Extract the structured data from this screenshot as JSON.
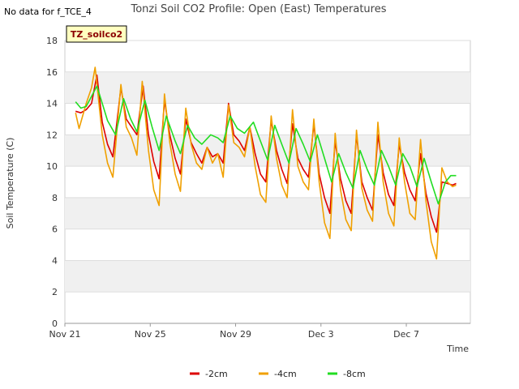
{
  "header": {
    "title": "Tonzi Soil CO2 Profile: Open (East) Temperatures",
    "no_data_note": "No data for f_TCE_4"
  },
  "badge": {
    "label": "TZ_soilco2"
  },
  "chart_data": {
    "type": "line",
    "title": "Tonzi Soil CO2 Profile: Open (East) Temperatures",
    "xlabel": "Time",
    "ylabel": "Soil Temperature (C)",
    "xlim": [
      "2019-11-21",
      "2019-12-10"
    ],
    "ylim": [
      0,
      18
    ],
    "x_ticks": [
      {
        "label": "Nov 21",
        "date": "2019-11-21"
      },
      {
        "label": "Nov 25",
        "date": "2019-11-25"
      },
      {
        "label": "Nov 29",
        "date": "2019-11-29"
      },
      {
        "label": "Dec 3",
        "date": "2019-12-03"
      },
      {
        "label": "Dec 7",
        "date": "2019-12-07"
      }
    ],
    "y_ticks": [
      0,
      2,
      4,
      6,
      8,
      10,
      12,
      14,
      16,
      18
    ],
    "grid": true,
    "legend_position": "bottom",
    "series": [
      {
        "name": "-2cm",
        "color": "#dd0000",
        "points": [
          [
            "2019-11-21T12:00",
            13.5
          ],
          [
            "2019-11-21T18:00",
            13.4
          ],
          [
            "2019-11-22T00:00",
            13.6
          ],
          [
            "2019-11-22T06:00",
            14.0
          ],
          [
            "2019-11-22T12:00",
            15.8
          ],
          [
            "2019-11-22T18:00",
            12.8
          ],
          [
            "2019-11-23T00:00",
            11.4
          ],
          [
            "2019-11-23T06:00",
            10.6
          ],
          [
            "2019-11-23T15:00",
            15.0
          ],
          [
            "2019-11-23T21:00",
            13.0
          ],
          [
            "2019-11-24T03:00",
            12.5
          ],
          [
            "2019-11-24T09:00",
            12.0
          ],
          [
            "2019-11-24T16:00",
            15.1
          ],
          [
            "2019-11-24T22:00",
            12.0
          ],
          [
            "2019-11-25T04:00",
            10.3
          ],
          [
            "2019-11-25T10:00",
            9.2
          ],
          [
            "2019-11-25T16:00",
            14.2
          ],
          [
            "2019-11-25T22:00",
            12.0
          ],
          [
            "2019-11-26T04:00",
            10.5
          ],
          [
            "2019-11-26T10:00",
            9.5
          ],
          [
            "2019-11-26T16:00",
            13.0
          ],
          [
            "2019-11-26T22:00",
            11.5
          ],
          [
            "2019-11-27T04:00",
            10.8
          ],
          [
            "2019-11-27T10:00",
            10.2
          ],
          [
            "2019-11-27T16:00",
            11.2
          ],
          [
            "2019-11-27T22:00",
            10.6
          ],
          [
            "2019-11-28T04:00",
            10.8
          ],
          [
            "2019-11-28T10:00",
            10.2
          ],
          [
            "2019-11-28T16:00",
            14.0
          ],
          [
            "2019-11-28T22:00",
            12.0
          ],
          [
            "2019-11-29T04:00",
            11.6
          ],
          [
            "2019-11-29T10:00",
            11.0
          ],
          [
            "2019-11-29T16:00",
            12.5
          ],
          [
            "2019-11-29T22:00",
            10.8
          ],
          [
            "2019-11-30T04:00",
            9.5
          ],
          [
            "2019-11-30T10:00",
            9.0
          ],
          [
            "2019-11-30T16:00",
            12.9
          ],
          [
            "2019-11-30T22:00",
            11.0
          ],
          [
            "2019-12-01T04:00",
            9.8
          ],
          [
            "2019-12-01T10:00",
            8.9
          ],
          [
            "2019-12-01T16:00",
            12.7
          ],
          [
            "2019-12-01T22:00",
            10.5
          ],
          [
            "2019-12-02T04:00",
            9.8
          ],
          [
            "2019-12-02T10:00",
            9.3
          ],
          [
            "2019-12-02T16:00",
            12.7
          ],
          [
            "2019-12-02T22:00",
            9.5
          ],
          [
            "2019-12-03T04:00",
            8.0
          ],
          [
            "2019-12-03T10:00",
            7.0
          ],
          [
            "2019-12-03T16:00",
            11.6
          ],
          [
            "2019-12-03T22:00",
            9.2
          ],
          [
            "2019-12-04T04:00",
            7.8
          ],
          [
            "2019-12-04T10:00",
            7.0
          ],
          [
            "2019-12-04T16:00",
            12.0
          ],
          [
            "2019-12-04T22:00",
            9.0
          ],
          [
            "2019-12-05T04:00",
            8.0
          ],
          [
            "2019-12-05T10:00",
            7.2
          ],
          [
            "2019-12-05T16:00",
            12.0
          ],
          [
            "2019-12-05T22:00",
            9.6
          ],
          [
            "2019-12-06T04:00",
            8.2
          ],
          [
            "2019-12-06T10:00",
            7.5
          ],
          [
            "2019-12-06T16:00",
            11.4
          ],
          [
            "2019-12-06T22:00",
            9.6
          ],
          [
            "2019-12-07T04:00",
            8.5
          ],
          [
            "2019-12-07T10:00",
            7.8
          ],
          [
            "2019-12-07T16:00",
            10.8
          ],
          [
            "2019-12-07T22:00",
            8.3
          ],
          [
            "2019-12-08T04:00",
            6.8
          ],
          [
            "2019-12-08T10:00",
            5.8
          ],
          [
            "2019-12-08T16:00",
            9.0
          ],
          [
            "2019-12-08T22:00",
            8.9
          ],
          [
            "2019-12-09T04:00",
            8.8
          ],
          [
            "2019-12-09T08:00",
            8.9
          ]
        ]
      },
      {
        "name": "-4cm",
        "color": "#f0a000",
        "points": [
          [
            "2019-11-21T12:00",
            13.4
          ],
          [
            "2019-11-21T16:00",
            12.4
          ],
          [
            "2019-11-22T00:00",
            14.0
          ],
          [
            "2019-11-22T06:00",
            15.0
          ],
          [
            "2019-11-22T10:00",
            16.3
          ],
          [
            "2019-11-22T18:00",
            12.0
          ],
          [
            "2019-11-23T00:00",
            10.2
          ],
          [
            "2019-11-23T06:00",
            9.3
          ],
          [
            "2019-11-23T15:00",
            15.2
          ],
          [
            "2019-11-23T21:00",
            12.5
          ],
          [
            "2019-11-24T03:00",
            11.8
          ],
          [
            "2019-11-24T09:00",
            10.7
          ],
          [
            "2019-11-24T15:00",
            15.4
          ],
          [
            "2019-11-24T22:00",
            11.0
          ],
          [
            "2019-11-25T04:00",
            8.5
          ],
          [
            "2019-11-25T10:00",
            7.5
          ],
          [
            "2019-11-25T16:00",
            14.6
          ],
          [
            "2019-11-25T22:00",
            11.5
          ],
          [
            "2019-11-26T04:00",
            9.5
          ],
          [
            "2019-11-26T10:00",
            8.4
          ],
          [
            "2019-11-26T16:00",
            13.7
          ],
          [
            "2019-11-26T22:00",
            11.4
          ],
          [
            "2019-11-27T04:00",
            10.2
          ],
          [
            "2019-11-27T10:00",
            9.8
          ],
          [
            "2019-11-27T16:00",
            11.2
          ],
          [
            "2019-11-27T22:00",
            10.2
          ],
          [
            "2019-11-28T04:00",
            10.8
          ],
          [
            "2019-11-28T10:00",
            9.3
          ],
          [
            "2019-11-28T16:00",
            13.9
          ],
          [
            "2019-11-28T22:00",
            11.5
          ],
          [
            "2019-11-29T04:00",
            11.2
          ],
          [
            "2019-11-29T10:00",
            10.6
          ],
          [
            "2019-11-29T16:00",
            12.5
          ],
          [
            "2019-11-29T22:00",
            10.0
          ],
          [
            "2019-11-30T04:00",
            8.2
          ],
          [
            "2019-11-30T10:00",
            7.7
          ],
          [
            "2019-11-30T16:00",
            13.2
          ],
          [
            "2019-11-30T22:00",
            10.5
          ],
          [
            "2019-12-01T04:00",
            8.8
          ],
          [
            "2019-12-01T10:00",
            8.0
          ],
          [
            "2019-12-01T16:00",
            13.6
          ],
          [
            "2019-12-01T22:00",
            10.0
          ],
          [
            "2019-12-02T04:00",
            9.0
          ],
          [
            "2019-12-02T10:00",
            8.5
          ],
          [
            "2019-12-02T16:00",
            13.0
          ],
          [
            "2019-12-02T22:00",
            9.0
          ],
          [
            "2019-12-03T04:00",
            6.4
          ],
          [
            "2019-12-03T10:00",
            5.4
          ],
          [
            "2019-12-03T16:00",
            12.1
          ],
          [
            "2019-12-03T22:00",
            8.5
          ],
          [
            "2019-12-04T04:00",
            6.6
          ],
          [
            "2019-12-04T10:00",
            5.9
          ],
          [
            "2019-12-04T16:00",
            12.3
          ],
          [
            "2019-12-04T22:00",
            8.6
          ],
          [
            "2019-12-05T04:00",
            7.2
          ],
          [
            "2019-12-05T10:00",
            6.5
          ],
          [
            "2019-12-05T16:00",
            12.8
          ],
          [
            "2019-12-05T22:00",
            9.0
          ],
          [
            "2019-12-06T04:00",
            7.0
          ],
          [
            "2019-12-06T10:00",
            6.2
          ],
          [
            "2019-12-06T16:00",
            11.8
          ],
          [
            "2019-12-06T22:00",
            9.0
          ],
          [
            "2019-12-07T04:00",
            7.0
          ],
          [
            "2019-12-07T10:00",
            6.6
          ],
          [
            "2019-12-07T16:00",
            11.7
          ],
          [
            "2019-12-07T22:00",
            7.8
          ],
          [
            "2019-12-08T04:00",
            5.2
          ],
          [
            "2019-12-08T10:00",
            4.1
          ],
          [
            "2019-12-08T16:00",
            9.9
          ],
          [
            "2019-12-08T22:00",
            9.0
          ],
          [
            "2019-12-09T04:00",
            8.7
          ],
          [
            "2019-12-09T08:00",
            8.8
          ]
        ]
      },
      {
        "name": "-8cm",
        "color": "#22dd22",
        "points": [
          [
            "2019-11-21T12:00",
            14.1
          ],
          [
            "2019-11-21T18:00",
            13.7
          ],
          [
            "2019-11-22T00:00",
            13.8
          ],
          [
            "2019-11-22T12:00",
            15.1
          ],
          [
            "2019-11-22T18:00",
            14.0
          ],
          [
            "2019-11-23T00:00",
            12.9
          ],
          [
            "2019-11-23T09:00",
            12.0
          ],
          [
            "2019-11-23T18:00",
            14.3
          ],
          [
            "2019-11-24T02:00",
            13.0
          ],
          [
            "2019-11-24T09:00",
            12.2
          ],
          [
            "2019-11-24T18:00",
            14.2
          ],
          [
            "2019-11-25T02:00",
            12.5
          ],
          [
            "2019-11-25T10:00",
            11.0
          ],
          [
            "2019-11-25T18:00",
            13.2
          ],
          [
            "2019-11-26T04:00",
            11.6
          ],
          [
            "2019-11-26T10:00",
            10.8
          ],
          [
            "2019-11-26T18:00",
            12.6
          ],
          [
            "2019-11-27T02:00",
            11.8
          ],
          [
            "2019-11-27T10:00",
            11.4
          ],
          [
            "2019-11-27T20:00",
            12.0
          ],
          [
            "2019-11-28T04:00",
            11.8
          ],
          [
            "2019-11-28T10:00",
            11.5
          ],
          [
            "2019-11-28T18:00",
            13.2
          ],
          [
            "2019-11-29T02:00",
            12.4
          ],
          [
            "2019-11-29T10:00",
            12.1
          ],
          [
            "2019-11-29T20:00",
            12.8
          ],
          [
            "2019-11-30T04:00",
            11.6
          ],
          [
            "2019-11-30T12:00",
            10.4
          ],
          [
            "2019-11-30T20:00",
            12.6
          ],
          [
            "2019-12-01T04:00",
            11.4
          ],
          [
            "2019-12-01T12:00",
            10.2
          ],
          [
            "2019-12-01T20:00",
            12.4
          ],
          [
            "2019-12-02T04:00",
            11.4
          ],
          [
            "2019-12-02T12:00",
            10.3
          ],
          [
            "2019-12-02T20:00",
            12.0
          ],
          [
            "2019-12-03T04:00",
            10.5
          ],
          [
            "2019-12-03T12:00",
            9.0
          ],
          [
            "2019-12-03T20:00",
            10.8
          ],
          [
            "2019-12-04T04:00",
            9.6
          ],
          [
            "2019-12-04T12:00",
            8.6
          ],
          [
            "2019-12-04T20:00",
            11.0
          ],
          [
            "2019-12-05T04:00",
            9.8
          ],
          [
            "2019-12-05T12:00",
            8.8
          ],
          [
            "2019-12-05T20:00",
            11.0
          ],
          [
            "2019-12-06T04:00",
            10.0
          ],
          [
            "2019-12-06T12:00",
            8.8
          ],
          [
            "2019-12-06T20:00",
            10.8
          ],
          [
            "2019-12-07T04:00",
            10.0
          ],
          [
            "2019-12-07T12:00",
            8.7
          ],
          [
            "2019-12-07T20:00",
            10.5
          ],
          [
            "2019-12-08T04:00",
            9.0
          ],
          [
            "2019-12-08T12:00",
            7.6
          ],
          [
            "2019-12-08T20:00",
            9.0
          ],
          [
            "2019-12-09T02:00",
            9.4
          ],
          [
            "2019-12-09T08:00",
            9.4
          ]
        ]
      }
    ]
  }
}
